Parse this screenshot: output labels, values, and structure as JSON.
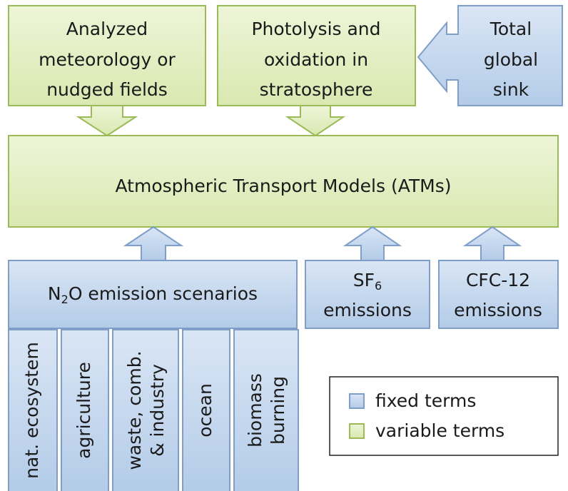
{
  "nodes": [
    {
      "lines": [
        "Analyzed",
        "meteorology or",
        "nudged fields"
      ]
    },
    {
      "lines": [
        "Photolysis and",
        "oxidation in",
        "stratosphere"
      ]
    },
    {
      "lines": [
        "Total",
        "global",
        "sink"
      ]
    },
    {
      "lines": [
        "Atmospheric Transport Models (ATMs)"
      ]
    },
    {
      "prefix": "N",
      "sub": "2",
      "suffix": "O emission scenarios"
    },
    {
      "prefix": "SF",
      "sub": "6",
      "suffix": "emissions"
    },
    {
      "lines": [
        "CFC-12",
        "emissions"
      ]
    }
  ],
  "sources": [
    {
      "lines": [
        "nat. ecosystem"
      ]
    },
    {
      "lines": [
        "agriculture"
      ]
    },
    {
      "lines": [
        "waste, comb.",
        "& industry"
      ]
    },
    {
      "lines": [
        "ocean"
      ]
    },
    {
      "lines": [
        "biomass",
        "burning"
      ]
    }
  ],
  "legend": {
    "items": [
      {
        "label": "fixed terms"
      },
      {
        "label": "variable terms"
      }
    ]
  }
}
